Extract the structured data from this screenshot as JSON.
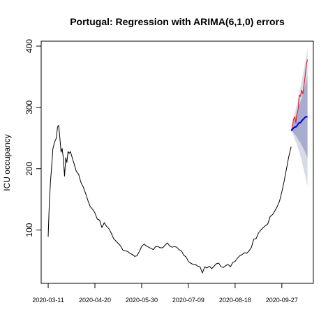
{
  "chart_data": {
    "type": "line",
    "title": "Portugal: Regression with ARIMA(6,1,0) errors",
    "xlabel": "",
    "ylabel": "ICU occupancy",
    "x_ticks": [
      "2020-03-11",
      "2020-04-20",
      "2020-05-30",
      "2020-07-09",
      "2020-08-18",
      "2020-09-27"
    ],
    "xlim": [
      "2020-03-05",
      "2020-10-24"
    ],
    "y_ticks": [
      100,
      200,
      300,
      400
    ],
    "ylim": [
      13,
      408
    ],
    "grid": false,
    "legend": "none",
    "colors": {
      "observed": "#000000",
      "actual": "#e8202a",
      "forecast": "#0000dd",
      "pi80": "#a7add0",
      "pi95": "#d8dbe6"
    },
    "series": [
      {
        "role": "observed",
        "x": [
          "2020-03-11",
          "2020-03-12",
          "2020-03-13",
          "2020-03-14",
          "2020-03-15",
          "2020-03-16",
          "2020-03-17",
          "2020-03-18",
          "2020-03-19",
          "2020-03-20",
          "2020-03-21",
          "2020-03-22",
          "2020-03-23",
          "2020-03-24",
          "2020-03-25",
          "2020-03-26",
          "2020-03-27",
          "2020-03-28",
          "2020-03-29",
          "2020-03-30",
          "2020-03-31",
          "2020-04-01",
          "2020-04-02",
          "2020-04-04",
          "2020-04-06",
          "2020-04-08",
          "2020-04-10",
          "2020-04-12",
          "2020-04-14",
          "2020-04-16",
          "2020-04-18",
          "2020-04-20",
          "2020-04-22",
          "2020-04-24",
          "2020-04-26",
          "2020-04-28",
          "2020-04-30",
          "2020-05-02",
          "2020-05-04",
          "2020-05-06",
          "2020-05-08",
          "2020-05-10",
          "2020-05-12",
          "2020-05-14",
          "2020-05-16",
          "2020-05-18",
          "2020-05-20",
          "2020-05-22",
          "2020-05-24",
          "2020-05-26",
          "2020-05-28",
          "2020-05-30",
          "2020-06-01",
          "2020-06-03",
          "2020-06-05",
          "2020-06-07",
          "2020-06-09",
          "2020-06-11",
          "2020-06-13",
          "2020-06-15",
          "2020-06-17",
          "2020-06-19",
          "2020-06-21",
          "2020-06-23",
          "2020-06-25",
          "2020-06-27",
          "2020-06-29",
          "2020-07-01",
          "2020-07-03",
          "2020-07-05",
          "2020-07-07",
          "2020-07-09",
          "2020-07-11",
          "2020-07-13",
          "2020-07-15",
          "2020-07-17",
          "2020-07-19",
          "2020-07-21",
          "2020-07-23",
          "2020-07-25",
          "2020-07-27",
          "2020-07-29",
          "2020-07-31",
          "2020-08-02",
          "2020-08-04",
          "2020-08-06",
          "2020-08-08",
          "2020-08-10",
          "2020-08-12",
          "2020-08-14",
          "2020-08-16",
          "2020-08-18",
          "2020-08-20",
          "2020-08-22",
          "2020-08-24",
          "2020-08-26",
          "2020-08-28",
          "2020-08-30",
          "2020-09-01",
          "2020-09-03",
          "2020-09-05",
          "2020-09-07",
          "2020-09-09",
          "2020-09-11",
          "2020-09-13",
          "2020-09-15",
          "2020-09-17",
          "2020-09-19",
          "2020-09-21",
          "2020-09-23",
          "2020-09-25",
          "2020-09-27",
          "2020-09-29",
          "2020-10-01",
          "2020-10-03",
          "2020-10-05"
        ],
        "values": [
          89,
          145,
          180,
          205,
          232,
          240,
          246,
          250,
          268,
          271,
          250,
          227,
          233,
          216,
          188,
          218,
          210,
          228,
          225,
          228,
          222,
          215,
          209,
          196,
          191,
          178,
          170,
          160,
          148,
          138,
          134,
          128,
          118,
          116,
          104,
          112,
          106,
          102,
          95,
          86,
          82,
          78,
          74,
          67,
          66,
          65,
          62,
          60,
          57,
          58,
          65,
          73,
          77,
          74,
          72,
          70,
          68,
          73,
          73,
          71,
          71,
          75,
          79,
          74,
          72,
          73,
          72,
          68,
          66,
          59,
          56,
          49,
          46,
          44,
          44,
          41,
          40,
          30,
          40,
          38,
          41,
          37,
          41,
          45,
          46,
          40,
          39,
          42,
          44,
          40,
          47,
          49,
          54,
          58,
          60,
          63,
          62,
          66,
          72,
          85,
          86,
          95,
          100,
          104,
          107,
          110,
          122,
          125,
          131,
          138,
          147,
          162,
          180,
          200,
          220,
          236
        ]
      },
      {
        "role": "actual",
        "x": [
          "2020-10-05",
          "2020-10-06",
          "2020-10-07",
          "2020-10-08",
          "2020-10-09",
          "2020-10-10",
          "2020-10-11",
          "2020-10-12",
          "2020-10-13",
          "2020-10-14",
          "2020-10-15",
          "2020-10-16",
          "2020-10-17",
          "2020-10-18",
          "2020-10-19"
        ],
        "values": [
          262,
          268,
          280,
          285,
          275,
          290,
          298,
          320,
          318,
          328,
          322,
          336,
          352,
          370,
          378
        ]
      },
      {
        "role": "forecast",
        "x": [
          "2020-10-05",
          "2020-10-06",
          "2020-10-07",
          "2020-10-08",
          "2020-10-09",
          "2020-10-10",
          "2020-10-11",
          "2020-10-12",
          "2020-10-13",
          "2020-10-14",
          "2020-10-15",
          "2020-10-16",
          "2020-10-17",
          "2020-10-18",
          "2020-10-19"
        ],
        "values": [
          262,
          264,
          266,
          268,
          268,
          270,
          273,
          275,
          275,
          278,
          280,
          282,
          284,
          285,
          284
        ],
        "lower80": [
          262,
          261,
          259,
          256,
          254,
          251,
          248,
          245,
          242,
          238,
          235,
          231,
          227,
          222,
          218
        ],
        "upper80": [
          262,
          268,
          274,
          280,
          286,
          292,
          298,
          304,
          310,
          315,
          322,
          329,
          336,
          344,
          352
        ],
        "lower95": [
          262,
          259,
          254,
          249,
          244,
          239,
          233,
          227,
          220,
          213,
          205,
          197,
          189,
          180,
          170
        ],
        "upper95": [
          262,
          270,
          279,
          288,
          297,
          306,
          315,
          324,
          334,
          343,
          352,
          362,
          373,
          385,
          398
        ]
      }
    ]
  }
}
